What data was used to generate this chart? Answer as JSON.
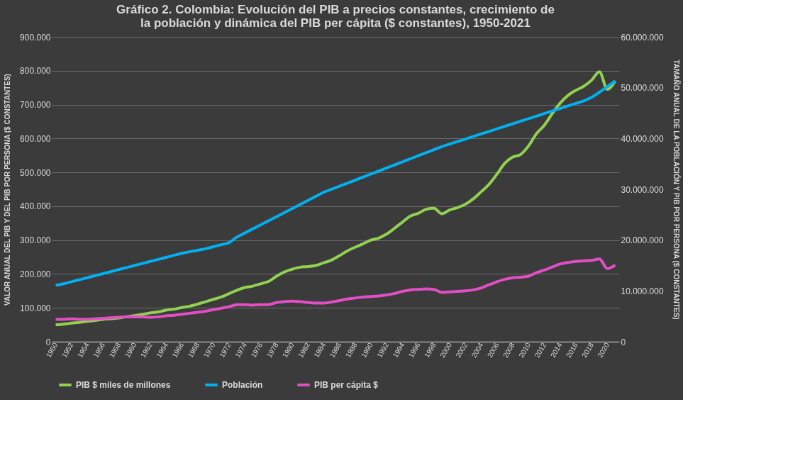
{
  "chart_data": {
    "type": "line",
    "title": "Gráfico 2. Colombia: Evolución del PIB a precios constantes, crecimiento de la población y dinámica del PIB per cápita ($ constantes), 1950-2021",
    "ylabel": "VALOR ANUAL DEL PIB Y DEL PIB POR PERSONA ($ CONSTANTES)",
    "y2label": "TAMAÑO ANUAL DE LA POBLACIÓN Y PIB POR PERSONA ($ CONSTANTES)",
    "categories": [
      "1950",
      null,
      "1952",
      null,
      "1954",
      null,
      "1956",
      null,
      "1958",
      null,
      "1960",
      null,
      "1962",
      null,
      "1964",
      null,
      "1966",
      null,
      "1968",
      null,
      "1970",
      null,
      "1972",
      null,
      "1974",
      null,
      "1976",
      null,
      "1978",
      null,
      "1980",
      null,
      "1982",
      null,
      "1984",
      null,
      "1986",
      null,
      "1988",
      null,
      "1990",
      null,
      "1992",
      null,
      "1994",
      null,
      "1996",
      null,
      "1998",
      null,
      "2000",
      null,
      "2002",
      null,
      "2004",
      null,
      "2006",
      null,
      "2008",
      null,
      "2010",
      null,
      "2012",
      null,
      "2014",
      null,
      "2016",
      null,
      "2018",
      null,
      "2020",
      null
    ],
    "ylim": [
      0,
      900000
    ],
    "yticks": [
      {
        "value": 0,
        "label": "0"
      },
      {
        "value": 100000,
        "label": "100.000"
      },
      {
        "value": 200000,
        "label": "200.000"
      },
      {
        "value": 300000,
        "label": "300.000"
      },
      {
        "value": 400000,
        "label": "400.000"
      },
      {
        "value": 500000,
        "label": "500.000"
      },
      {
        "value": 600000,
        "label": "600.000"
      },
      {
        "value": 700000,
        "label": "700.000"
      },
      {
        "value": 800000,
        "label": "800.000"
      },
      {
        "value": 900000,
        "label": "900.000"
      }
    ],
    "y2lim": [
      0,
      60000000
    ],
    "y2ticks": [
      {
        "value": 0,
        "label": "0"
      },
      {
        "value": 10000000,
        "label": "10.000.000"
      },
      {
        "value": 20000000,
        "label": "20.000.000"
      },
      {
        "value": 30000000,
        "label": "30.000.000"
      },
      {
        "value": 40000000,
        "label": "40.000.000"
      },
      {
        "value": 50000000,
        "label": "50.000.000"
      },
      {
        "value": 60000000,
        "label": "60.000.000"
      }
    ],
    "grid": "y",
    "legend": "bottom",
    "marker": "none",
    "line_style": "solid",
    "series": [
      {
        "name": "PIB $ miles de millones",
        "color": "#92d050",
        "values": [
          50000,
          52000,
          55000,
          57000,
          60000,
          63000,
          66000,
          68000,
          70000,
          74000,
          77000,
          81000,
          85000,
          88000,
          93000,
          96000,
          101000,
          105000,
          111000,
          118000,
          125000,
          132000,
          142000,
          152000,
          160000,
          164000,
          171000,
          178000,
          193000,
          206000,
          214000,
          220000,
          222000,
          225000,
          233000,
          241000,
          254000,
          268000,
          279000,
          289000,
          300000,
          306000,
          318000,
          335000,
          353000,
          371000,
          379000,
          391000,
          394000,
          378000,
          389000,
          396000,
          406000,
          422000,
          443000,
          465000,
          495000,
          527000,
          545000,
          553000,
          578000,
          614000,
          639000,
          673000,
          704000,
          727000,
          742000,
          754000,
          772000,
          797000,
          745000,
          770000
        ]
      },
      {
        "name": "Población",
        "color": "#00b0f0",
        "axis": "y2",
        "values": [
          11100000,
          11400000,
          11800000,
          12200000,
          12600000,
          13000000,
          13400000,
          13800000,
          14200000,
          14600000,
          15000000,
          15400000,
          15800000,
          16200000,
          16600000,
          17000000,
          17400000,
          17700000,
          18000000,
          18300000,
          18700000,
          19100000,
          19500000,
          20600000,
          21400000,
          22200000,
          23000000,
          23800000,
          24600000,
          25400000,
          26200000,
          27000000,
          27800000,
          28600000,
          29400000,
          30000000,
          30600000,
          31200000,
          31800000,
          32400000,
          33000000,
          33600000,
          34200000,
          34800000,
          35400000,
          36000000,
          36600000,
          37200000,
          37800000,
          38400000,
          38900000,
          39400000,
          39900000,
          40400000,
          40900000,
          41400000,
          41900000,
          42400000,
          42900000,
          43400000,
          43900000,
          44400000,
          44900000,
          45400000,
          45900000,
          46400000,
          46900000,
          47400000,
          48100000,
          49100000,
          50200000,
          51300000
        ]
      },
      {
        "name": "PIB per cápita $",
        "color": "#e24fc4",
        "axis": "y2",
        "values": [
          4400000,
          4400000,
          4500000,
          4400000,
          4400000,
          4500000,
          4600000,
          4700000,
          4800000,
          4900000,
          4900000,
          4900000,
          4800000,
          4900000,
          5100000,
          5200000,
          5400000,
          5600000,
          5800000,
          6000000,
          6300000,
          6600000,
          6900000,
          7300000,
          7300000,
          7200000,
          7300000,
          7300000,
          7700000,
          7900000,
          8000000,
          7900000,
          7700000,
          7600000,
          7600000,
          7800000,
          8100000,
          8400000,
          8600000,
          8800000,
          8900000,
          9000000,
          9200000,
          9500000,
          9900000,
          10200000,
          10300000,
          10400000,
          10300000,
          9700000,
          9800000,
          9900000,
          10000000,
          10200000,
          10600000,
          11200000,
          11800000,
          12300000,
          12600000,
          12700000,
          12900000,
          13600000,
          14100000,
          14700000,
          15300000,
          15600000,
          15800000,
          15900000,
          16000000,
          16300000,
          14400000,
          15100000
        ]
      }
    ]
  }
}
